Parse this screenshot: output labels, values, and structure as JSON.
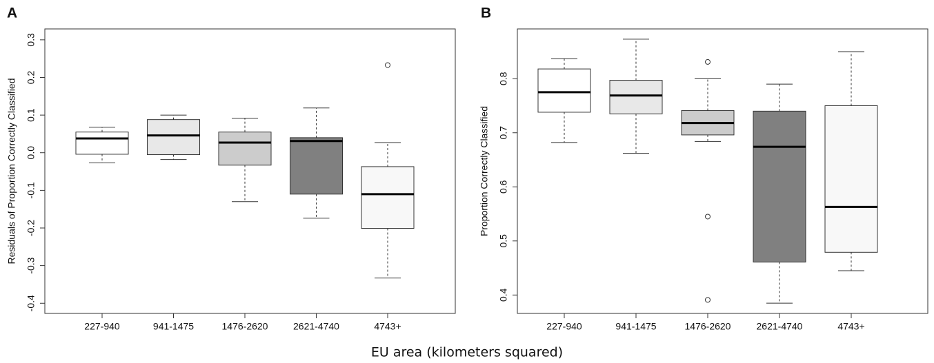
{
  "xlabel": "EU area (kilometers squared)",
  "chart_data": [
    {
      "type": "box",
      "label": "A",
      "ylabel": "Residuals of Proportion Correctly Classified",
      "categories": [
        "227-940",
        "941-1475",
        "1476-2620",
        "2621-4740",
        "4743+"
      ],
      "colors": [
        "#ffffff",
        "#e8e8e8",
        "#cccccc",
        "#808080",
        "#f8f8f8"
      ],
      "boxes": [
        {
          "min": -0.027,
          "q1": -0.004,
          "median": 0.038,
          "q3": 0.055,
          "max": 0.068
        },
        {
          "min": -0.018,
          "q1": -0.005,
          "median": 0.046,
          "q3": 0.088,
          "max": 0.1
        },
        {
          "min": -0.13,
          "q1": -0.033,
          "median": 0.027,
          "q3": 0.055,
          "max": 0.092
        },
        {
          "min": -0.174,
          "q1": -0.11,
          "median": 0.031,
          "q3": 0.04,
          "max": 0.119
        },
        {
          "min": -0.333,
          "q1": -0.201,
          "median": -0.11,
          "q3": -0.037,
          "max": 0.027,
          "outliers": [
            0.233
          ]
        }
      ],
      "ylim": [
        -0.427,
        0.329
      ],
      "yticks": [
        -0.4,
        -0.3,
        -0.2,
        -0.1,
        {
          "value": 0,
          "label": "0.0"
        },
        0.1,
        0.2,
        0.3
      ]
    },
    {
      "type": "box",
      "label": "B",
      "ylabel": "Proportion Correctly Classified",
      "categories": [
        "227-940",
        "941-1475",
        "1476-2620",
        "2621-4740",
        "4743+"
      ],
      "colors": [
        "#ffffff",
        "#e8e8e8",
        "#cccccc",
        "#808080",
        "#f8f8f8"
      ],
      "boxes": [
        {
          "min": 0.682,
          "q1": 0.738,
          "median": 0.775,
          "q3": 0.818,
          "max": 0.837
        },
        {
          "min": 0.662,
          "q1": 0.735,
          "median": 0.769,
          "q3": 0.797,
          "max": 0.873
        },
        {
          "min": 0.684,
          "q1": 0.696,
          "median": 0.718,
          "q3": 0.741,
          "max": 0.801,
          "outliers": [
            0.831,
            0.545,
            0.391
          ]
        },
        {
          "min": 0.385,
          "q1": 0.461,
          "median": 0.674,
          "q3": 0.74,
          "max": 0.79
        },
        {
          "min": 0.445,
          "q1": 0.479,
          "median": 0.563,
          "q3": 0.75,
          "max": 0.85
        }
      ],
      "ylim": [
        0.366,
        0.892
      ],
      "yticks": [
        0.4,
        0.5,
        0.6,
        0.7,
        0.8
      ]
    }
  ]
}
